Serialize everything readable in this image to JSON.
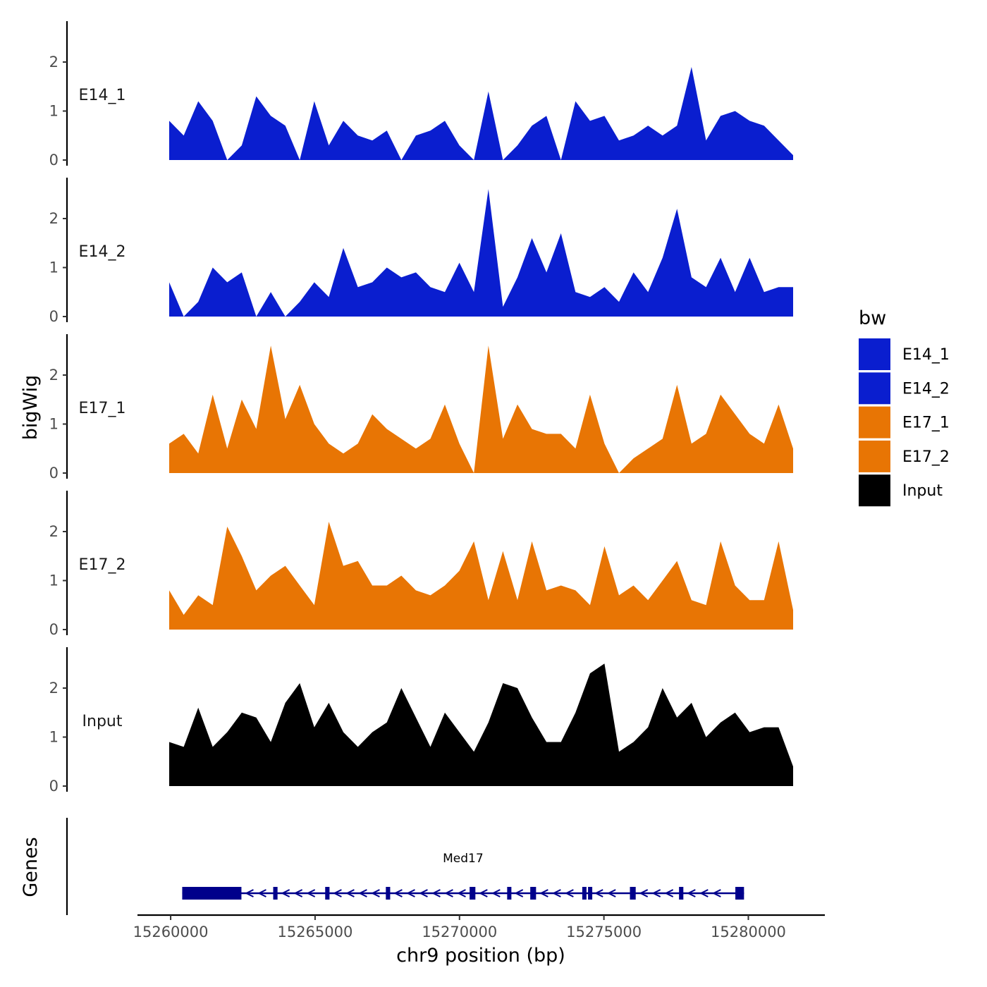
{
  "chart_data": [
    {
      "type": "area",
      "title": "",
      "ylabel": "bigWig",
      "xlabel": "chr9 position (bp)",
      "xlim": [
        15260400,
        15281900
      ],
      "ylim": [
        0,
        2.8
      ],
      "yticks": [
        0,
        1,
        2
      ],
      "ytick_labels": [
        "0",
        "1",
        "2"
      ],
      "grid": false,
      "colors": {
        "E14_1": "#0a1ecf",
        "E14_2": "#0a1ecf",
        "E17_1": "#e87504",
        "E17_2": "#e87504",
        "Input": "#000000"
      },
      "x": [
        15260400,
        15260900,
        15261400,
        15261900,
        15262400,
        15262900,
        15263400,
        15263900,
        15264400,
        15264900,
        15265400,
        15265900,
        15266400,
        15266900,
        15267400,
        15267900,
        15268400,
        15268900,
        15269400,
        15269900,
        15270400,
        15270900,
        15271400,
        15271900,
        15272400,
        15272900,
        15273400,
        15273900,
        15274400,
        15274900,
        15275400,
        15275900,
        15276400,
        15276900,
        15277400,
        15277900,
        15278400,
        15278900,
        15279400,
        15279900,
        15280400,
        15280900,
        15281400,
        15281900
      ],
      "series": [
        {
          "name": "E14_1",
          "values": [
            0.8,
            0.5,
            1.2,
            0.8,
            0.0,
            0.3,
            1.3,
            0.9,
            0.7,
            0.0,
            1.2,
            0.3,
            0.8,
            0.5,
            0.4,
            0.6,
            0.0,
            0.5,
            0.6,
            0.8,
            0.3,
            0.0,
            1.4,
            0.0,
            0.3,
            0.7,
            0.9,
            0.0,
            1.2,
            0.8,
            0.9,
            0.4,
            0.5,
            0.7,
            0.5,
            0.7,
            1.9,
            0.4,
            0.9,
            1.0,
            0.8,
            0.7,
            0.4,
            0.1
          ]
        },
        {
          "name": "E14_2",
          "values": [
            0.7,
            0.0,
            0.3,
            1.0,
            0.7,
            0.9,
            0.0,
            0.5,
            0.0,
            0.3,
            0.7,
            0.4,
            1.4,
            0.6,
            0.7,
            1.0,
            0.8,
            0.9,
            0.6,
            0.5,
            1.1,
            0.5,
            2.6,
            0.2,
            0.8,
            1.6,
            0.9,
            1.7,
            0.5,
            0.4,
            0.6,
            0.3,
            0.9,
            0.5,
            1.2,
            2.2,
            0.8,
            0.6,
            1.2,
            0.5,
            1.2,
            0.5,
            0.6,
            0.6
          ]
        },
        {
          "name": "E17_1",
          "values": [
            0.6,
            0.8,
            0.4,
            1.6,
            0.5,
            1.5,
            0.9,
            2.6,
            1.1,
            1.8,
            1.0,
            0.6,
            0.4,
            0.6,
            1.2,
            0.9,
            0.7,
            0.5,
            0.7,
            1.4,
            0.6,
            0.0,
            2.6,
            0.7,
            1.4,
            0.9,
            0.8,
            0.8,
            0.5,
            1.6,
            0.6,
            0.0,
            0.3,
            0.5,
            0.7,
            1.8,
            0.6,
            0.8,
            1.6,
            1.2,
            0.8,
            0.6,
            1.4,
            0.5
          ]
        },
        {
          "name": "E17_2",
          "values": [
            0.8,
            0.3,
            0.7,
            0.5,
            2.1,
            1.5,
            0.8,
            1.1,
            1.3,
            0.9,
            0.5,
            2.2,
            1.3,
            1.4,
            0.9,
            0.9,
            1.1,
            0.8,
            0.7,
            0.9,
            1.2,
            1.8,
            0.6,
            1.6,
            0.6,
            1.8,
            0.8,
            0.9,
            0.8,
            0.5,
            1.7,
            0.7,
            0.9,
            0.6,
            1.0,
            1.4,
            0.6,
            0.5,
            1.8,
            0.9,
            0.6,
            0.6,
            1.8,
            0.4
          ]
        },
        {
          "name": "Input",
          "values": [
            0.9,
            0.8,
            1.6,
            0.8,
            1.1,
            1.5,
            1.4,
            0.9,
            1.7,
            2.1,
            1.2,
            1.7,
            1.1,
            0.8,
            1.1,
            1.3,
            2.0,
            1.4,
            0.8,
            1.5,
            1.1,
            0.7,
            1.3,
            2.1,
            2.0,
            1.4,
            0.9,
            0.9,
            1.5,
            2.3,
            2.5,
            0.7,
            0.9,
            1.2,
            2.0,
            1.4,
            1.7,
            1.0,
            1.3,
            1.5,
            1.1,
            1.2,
            1.2,
            0.4
          ]
        }
      ]
    },
    {
      "type": "gene-track",
      "ylabel": "Genes",
      "xticks": [
        15260000,
        15265000,
        15270000,
        15275000,
        15280000
      ],
      "xtick_labels": [
        "15260000",
        "15265000",
        "15270000",
        "15275000",
        "15280000"
      ],
      "xlim": [
        15258900,
        15282600
      ],
      "gene": {
        "name": "Med17",
        "start": 15260400,
        "end": 15279850,
        "strand": "-",
        "color": "#00008b",
        "exons": [
          [
            15260400,
            15262450
          ],
          [
            15263550,
            15263700
          ],
          [
            15265350,
            15265500
          ],
          [
            15267450,
            15267600
          ],
          [
            15270350,
            15270550
          ],
          [
            15271650,
            15271780
          ],
          [
            15272450,
            15272650
          ],
          [
            15274250,
            15274350
          ],
          [
            15274450,
            15274550
          ],
          [
            15275900,
            15276100
          ],
          [
            15277600,
            15277750
          ],
          [
            15279550,
            15279850
          ]
        ]
      }
    }
  ],
  "legend": {
    "title": "bw",
    "items": [
      {
        "label": "E14_1",
        "color": "#0a1ecf"
      },
      {
        "label": "E14_2",
        "color": "#0a1ecf"
      },
      {
        "label": "E17_1",
        "color": "#e87504"
      },
      {
        "label": "E17_2",
        "color": "#e87504"
      },
      {
        "label": "Input",
        "color": "#000000"
      }
    ]
  }
}
